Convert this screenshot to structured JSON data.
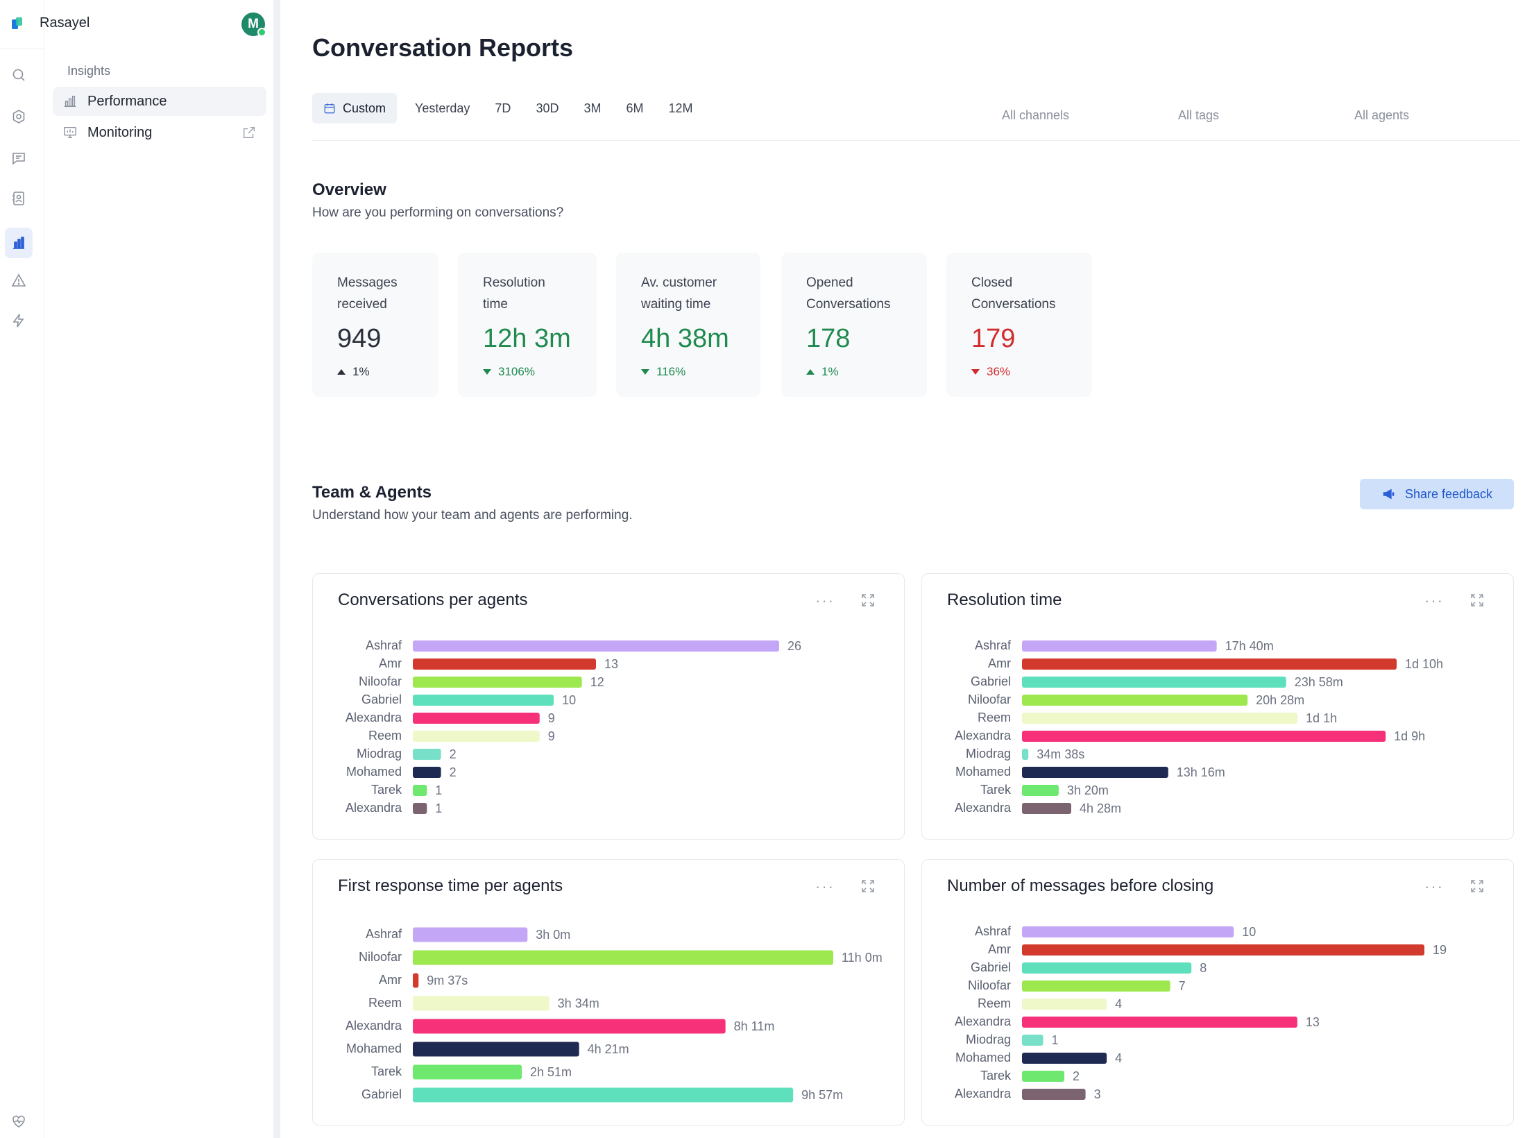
{
  "app": {
    "name": "Rasayel",
    "avatar_initial": "M"
  },
  "rail": {
    "icons": [
      "search-icon",
      "settings-hexagon-icon",
      "chat-icon",
      "contacts-icon",
      "bar-chart-icon",
      "alert-triangle-icon",
      "lightning-icon",
      "heart-pulse-icon"
    ],
    "active": "bar-chart-icon"
  },
  "sidebar": {
    "heading": "Insights",
    "items": [
      {
        "label": "Performance",
        "icon": "bar-chart-icon",
        "active": true
      },
      {
        "label": "Monitoring",
        "icon": "monitor-icon",
        "active": false
      }
    ]
  },
  "page": {
    "title": "Conversation Reports",
    "ranges": [
      "Custom",
      "Yesterday",
      "7D",
      "30D",
      "3M",
      "6M",
      "12M"
    ],
    "active_range": "Custom",
    "filters": {
      "channels": "All channels",
      "tags": "All tags",
      "agents": "All agents"
    }
  },
  "overview": {
    "title": "Overview",
    "subtitle": "How are you performing on conversations?",
    "kpis": [
      {
        "label": "Messages\nreceived",
        "value": "949",
        "change": "1%",
        "direction": "up",
        "tone": "neutral"
      },
      {
        "label": "Resolution\ntime",
        "value": "12h 3m",
        "change": "3106%",
        "direction": "down",
        "tone": "good"
      },
      {
        "label": "Av. customer\nwaiting time",
        "value": "4h 38m",
        "change": "116%",
        "direction": "down",
        "tone": "good"
      },
      {
        "label": "Opened\nConversations",
        "value": "178",
        "change": "1%",
        "direction": "up",
        "tone": "good"
      },
      {
        "label": "Closed\nConversations",
        "value": "179",
        "change": "36%",
        "direction": "down",
        "tone": "bad"
      }
    ],
    "colors": {
      "good": "#1f8a4e",
      "bad": "#d12b2b",
      "neutral": "#2a2f3b"
    }
  },
  "team": {
    "title": "Team & Agents",
    "subtitle": "Understand how your team and agents are performing.",
    "share_feedback": "Share feedback"
  },
  "chart_data": [
    {
      "type": "bar",
      "orientation": "horizontal",
      "title": "Conversations per agents",
      "categories": [
        "Ashraf",
        "Amr",
        "Niloofar",
        "Gabriel",
        "Alexandra",
        "Reem",
        "Miodrag",
        "Mohamed",
        "Tarek",
        "Alexandra"
      ],
      "values": [
        26,
        13,
        12,
        10,
        9,
        9,
        2,
        2,
        1,
        1
      ],
      "labels": [
        "26",
        "13",
        "12",
        "10",
        "9",
        "9",
        "2",
        "2",
        "1",
        "1"
      ],
      "colors": [
        "#c4a6f7",
        "#d23a2e",
        "#9ee84f",
        "#5ee0bd",
        "#f7307a",
        "#eef8c8",
        "#78e0c9",
        "#1f2a52",
        "#6ee86e",
        "#7b6370"
      ]
    },
    {
      "type": "bar",
      "orientation": "horizontal",
      "title": "Resolution time",
      "unit": "hours",
      "categories": [
        "Ashraf",
        "Amr",
        "Gabriel",
        "Niloofar",
        "Reem",
        "Alexandra",
        "Miodrag",
        "Mohamed",
        "Tarek",
        "Alexandra"
      ],
      "values": [
        17.67,
        34,
        23.97,
        20.47,
        25,
        33,
        0.58,
        13.27,
        3.33,
        4.47
      ],
      "labels": [
        "17h 40m",
        "1d 10h",
        "23h 58m",
        "20h 28m",
        "1d 1h",
        "1d 9h",
        "34m 38s",
        "13h 16m",
        "3h 20m",
        "4h 28m"
      ],
      "colors": [
        "#c4a6f7",
        "#d23a2e",
        "#5ee0bd",
        "#9ee84f",
        "#eef8c8",
        "#f7307a",
        "#78e0c9",
        "#1f2a52",
        "#6ee86e",
        "#7b6370"
      ]
    },
    {
      "type": "bar",
      "orientation": "horizontal",
      "title": "First response time per agents",
      "unit": "hours",
      "categories": [
        "Ashraf",
        "Niloofar",
        "Amr",
        "Reem",
        "Alexandra",
        "Mohamed",
        "Tarek",
        "Gabriel"
      ],
      "values": [
        3,
        11,
        0.15,
        3.57,
        8.18,
        4.35,
        2.85,
        9.95
      ],
      "labels": [
        "3h 0m",
        "11h 0m",
        "9m 37s",
        "3h 34m",
        "8h 11m",
        "4h 21m",
        "2h 51m",
        "9h 57m"
      ],
      "colors": [
        "#c4a6f7",
        "#9ee84f",
        "#d23a2e",
        "#eef8c8",
        "#f7307a",
        "#1f2a52",
        "#6ee86e",
        "#5ee0bd"
      ]
    },
    {
      "type": "bar",
      "orientation": "horizontal",
      "title": "Number of messages before closing",
      "categories": [
        "Ashraf",
        "Amr",
        "Gabriel",
        "Niloofar",
        "Reem",
        "Alexandra",
        "Miodrag",
        "Mohamed",
        "Tarek",
        "Alexandra"
      ],
      "values": [
        10,
        19,
        8,
        7,
        4,
        13,
        1,
        4,
        2,
        3
      ],
      "labels": [
        "10",
        "19",
        "8",
        "7",
        "4",
        "13",
        "1",
        "4",
        "2",
        "3"
      ],
      "colors": [
        "#c4a6f7",
        "#d23a2e",
        "#5ee0bd",
        "#9ee84f",
        "#eef8c8",
        "#f7307a",
        "#78e0c9",
        "#1f2a52",
        "#6ee86e",
        "#7b6370"
      ]
    }
  ]
}
